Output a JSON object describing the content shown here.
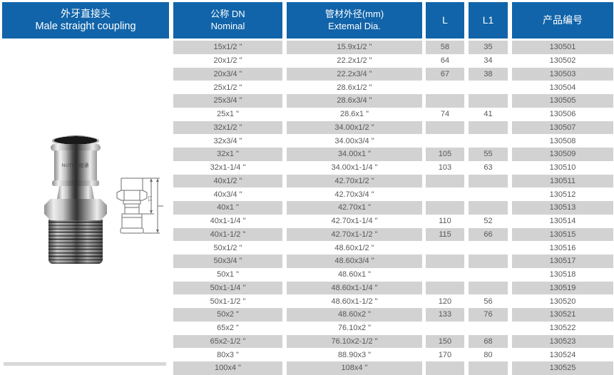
{
  "page": {
    "title_cn": "外牙直接头",
    "title_en": "Male straight coupling"
  },
  "columns": {
    "nominal_cn": "公称 DN",
    "nominal_en": "Nominal",
    "external_cn": "管材外径(mm)",
    "external_en": "Extemal Dia.",
    "l_label": "L",
    "l1_label": "L1",
    "code_label": "产品编号"
  },
  "product_image": {
    "brand_mark": "NUTOP纽通",
    "dim_label": "L1"
  },
  "colors": {
    "header_blue": "#1164a9",
    "row_gray": "#d2d2d2",
    "body_text": "#57585a"
  },
  "table": {
    "rows": [
      {
        "nominal": "15x1/2 \"",
        "external": "15.9x1/2 \"",
        "l": "58",
        "l1": "35",
        "code": "130501"
      },
      {
        "nominal": "20x1/2 \"",
        "external": "22.2x1/2 \"",
        "l": "64",
        "l1": "34",
        "code": "130502"
      },
      {
        "nominal": "20x3/4 \"",
        "external": "22.2x3/4 \"",
        "l": "67",
        "l1": "38",
        "code": "130503"
      },
      {
        "nominal": "25x1/2 \"",
        "external": "28.6x1/2 \"",
        "l": "",
        "l1": "",
        "code": "130504"
      },
      {
        "nominal": "25x3/4 \"",
        "external": "28.6x3/4 \"",
        "l": "",
        "l1": "",
        "code": "130505"
      },
      {
        "nominal": "25x1 \"",
        "external": "28.6x1 \"",
        "l": "74",
        "l1": "41",
        "code": "130506"
      },
      {
        "nominal": "32x1/2 \"",
        "external": "34.00x1/2 \"",
        "l": "",
        "l1": "",
        "code": "130507"
      },
      {
        "nominal": "32x3/4 \"",
        "external": "34.00x3/4 \"",
        "l": "",
        "l1": "",
        "code": "130508"
      },
      {
        "nominal": "32x1 \"",
        "external": "34.00x1 \"",
        "l": "105",
        "l1": "55",
        "code": "130509"
      },
      {
        "nominal": "32x1-1/4 \"",
        "external": "34.00x1-1/4 \"",
        "l": "103",
        "l1": "63",
        "code": "130510"
      },
      {
        "nominal": "40x1/2 \"",
        "external": "42.70x1/2 \"",
        "l": "",
        "l1": "",
        "code": "130511"
      },
      {
        "nominal": "40x3/4 \"",
        "external": "42.70x3/4 \"",
        "l": "",
        "l1": "",
        "code": "130512"
      },
      {
        "nominal": "40x1 \"",
        "external": "42.70x1 \"",
        "l": "",
        "l1": "",
        "code": "130513"
      },
      {
        "nominal": "40x1-1/4 \"",
        "external": "42.70x1-1/4 \"",
        "l": "110",
        "l1": "52",
        "code": "130514"
      },
      {
        "nominal": "40x1-1/2 \"",
        "external": "42.70x1-1/2 \"",
        "l": "115",
        "l1": "66",
        "code": "130515"
      },
      {
        "nominal": "50x1/2 \"",
        "external": "48.60x1/2 \"",
        "l": "",
        "l1": "",
        "code": "130516"
      },
      {
        "nominal": "50x3/4 \"",
        "external": "48.60x3/4 \"",
        "l": "",
        "l1": "",
        "code": "130517"
      },
      {
        "nominal": "50x1 \"",
        "external": "48.60x1 \"",
        "l": "",
        "l1": "",
        "code": "130518"
      },
      {
        "nominal": "50x1-1/4 \"",
        "external": "48.60x1-1/4 \"",
        "l": "",
        "l1": "",
        "code": "130519"
      },
      {
        "nominal": "50x1-1/2 \"",
        "external": "48.60x1-1/2 \"",
        "l": "120",
        "l1": "56",
        "code": "130520"
      },
      {
        "nominal": "50x2 \"",
        "external": "48.60x2 \"",
        "l": "133",
        "l1": "76",
        "code": "130521"
      },
      {
        "nominal": "65x2 \"",
        "external": "76.10x2 \"",
        "l": "",
        "l1": "",
        "code": "130522"
      },
      {
        "nominal": "65x2-1/2 \"",
        "external": "76.10x2-1/2 \"",
        "l": "150",
        "l1": "68",
        "code": "130523"
      },
      {
        "nominal": "80x3 \"",
        "external": "88.90x3 \"",
        "l": "170",
        "l1": "80",
        "code": "130524"
      },
      {
        "nominal": "100x4 \"",
        "external": "108x4 \"",
        "l": "",
        "l1": "",
        "code": "130525"
      }
    ]
  }
}
